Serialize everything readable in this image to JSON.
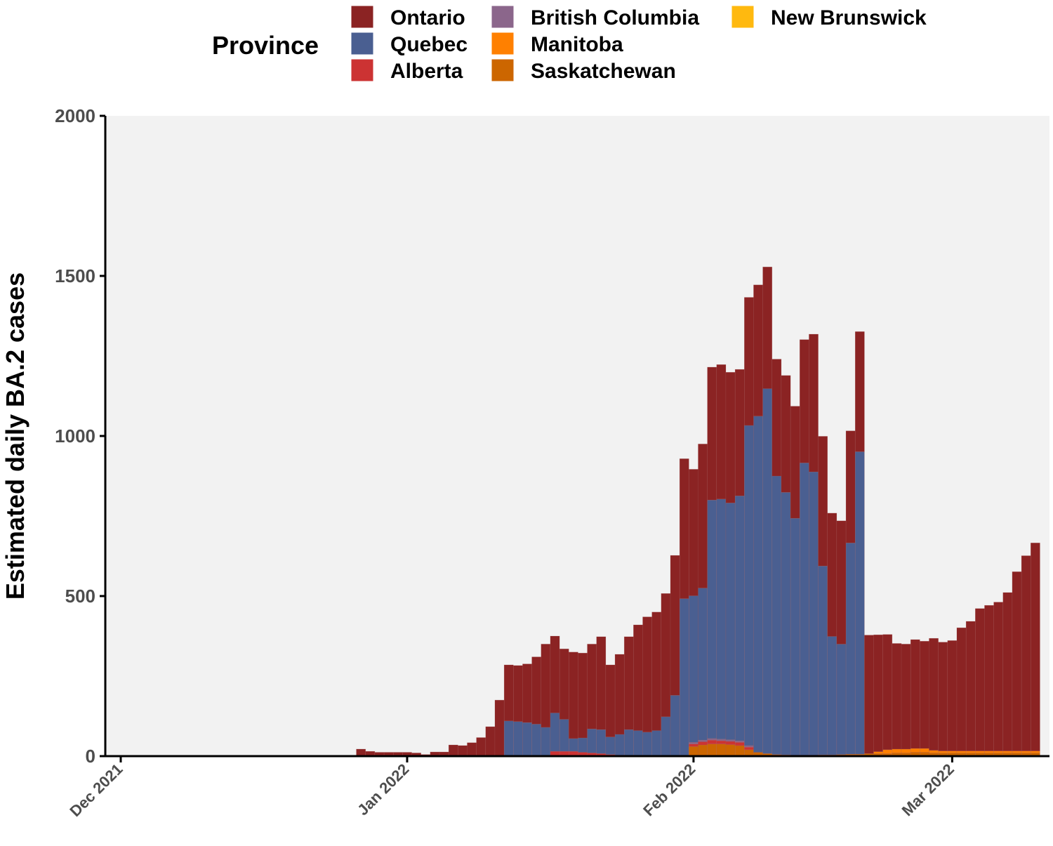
{
  "chart_data": {
    "type": "bar",
    "stacked": true,
    "ylabel": "Estimated daily BA.2 cases",
    "xlabel": "",
    "ylim": [
      0,
      2000
    ],
    "yticks": [
      0,
      500,
      1000,
      1500,
      2000
    ],
    "x_start": "2021-12-01",
    "x_end": "2022-03-11",
    "xticks": [
      {
        "date": "2021-12-01",
        "label": "Dec 2021"
      },
      {
        "date": "2022-01-01",
        "label": "Jan 2022"
      },
      {
        "date": "2022-02-01",
        "label": "Feb 2022"
      },
      {
        "date": "2022-03-01",
        "label": "Mar 2022"
      }
    ],
    "grid": false,
    "legend": {
      "title": "Province",
      "position": "top",
      "entries": [
        "Ontario",
        "Quebec",
        "Alberta",
        "British Columbia",
        "Manitoba",
        "Saskatchewan",
        "New Brunswick"
      ]
    },
    "x": [
      "2021-12-27",
      "2021-12-28",
      "2021-12-29",
      "2021-12-30",
      "2021-12-31",
      "2022-01-01",
      "2022-01-02",
      "2022-01-03",
      "2022-01-04",
      "2022-01-05",
      "2022-01-06",
      "2022-01-07",
      "2022-01-08",
      "2022-01-09",
      "2022-01-10",
      "2022-01-11",
      "2022-01-12",
      "2022-01-13",
      "2022-01-14",
      "2022-01-15",
      "2022-01-16",
      "2022-01-17",
      "2022-01-18",
      "2022-01-19",
      "2022-01-20",
      "2022-01-21",
      "2022-01-22",
      "2022-01-23",
      "2022-01-24",
      "2022-01-25",
      "2022-01-26",
      "2022-01-27",
      "2022-01-28",
      "2022-01-29",
      "2022-01-30",
      "2022-01-31",
      "2022-02-01",
      "2022-02-02",
      "2022-02-03",
      "2022-02-04",
      "2022-02-05",
      "2022-02-06",
      "2022-02-07",
      "2022-02-08",
      "2022-02-09",
      "2022-02-10",
      "2022-02-11",
      "2022-02-12",
      "2022-02-13",
      "2022-02-14",
      "2022-02-15",
      "2022-02-16",
      "2022-02-17",
      "2022-02-18",
      "2022-02-19",
      "2022-02-20",
      "2022-02-21",
      "2022-02-22",
      "2022-02-23",
      "2022-02-24",
      "2022-02-25",
      "2022-02-26",
      "2022-02-27",
      "2022-02-28",
      "2022-03-01",
      "2022-03-02",
      "2022-03-03",
      "2022-03-04",
      "2022-03-05",
      "2022-03-06",
      "2022-03-07",
      "2022-03-08",
      "2022-03-09",
      "2022-03-10"
    ],
    "series": [
      {
        "name": "Saskatchewan",
        "color": "#CC6600",
        "values": [
          0,
          0,
          0,
          0,
          0,
          0,
          0,
          0,
          0,
          0,
          0,
          0,
          0,
          0,
          0,
          0,
          0,
          0,
          0,
          0,
          0,
          0,
          0,
          0,
          0,
          0,
          0,
          0,
          0,
          0,
          0,
          0,
          0,
          0,
          0,
          0,
          30,
          35,
          38,
          38,
          36,
          33,
          20,
          12,
          8,
          5,
          4,
          3,
          3,
          3,
          4,
          4,
          5,
          6,
          6,
          8,
          8,
          8,
          10,
          10,
          12,
          12,
          10,
          10,
          10,
          10,
          10,
          10,
          10,
          10,
          10,
          10,
          10,
          10
        ]
      },
      {
        "name": "Manitoba",
        "color": "#FF8000",
        "values": [
          0,
          0,
          0,
          0,
          0,
          0,
          0,
          0,
          0,
          0,
          0,
          0,
          0,
          0,
          0,
          0,
          0,
          0,
          0,
          0,
          0,
          0,
          0,
          0,
          0,
          0,
          0,
          0,
          0,
          0,
          0,
          0,
          0,
          0,
          0,
          0,
          0,
          0,
          0,
          0,
          0,
          0,
          0,
          0,
          0,
          0,
          0,
          0,
          0,
          0,
          0,
          0,
          0,
          0,
          0,
          0,
          6,
          12,
          12,
          12,
          12,
          12,
          8,
          6,
          6,
          6,
          6,
          6,
          6,
          6,
          6,
          6,
          6,
          6
        ]
      },
      {
        "name": "Alberta",
        "color": "#CC3333",
        "values": [
          0,
          0,
          0,
          0,
          0,
          0,
          0,
          0,
          0,
          0,
          0,
          0,
          0,
          0,
          0,
          0,
          0,
          0,
          0,
          0,
          0,
          15,
          15,
          15,
          12,
          10,
          8,
          5,
          3,
          0,
          0,
          0,
          0,
          0,
          0,
          0,
          8,
          10,
          12,
          10,
          10,
          10,
          8,
          0,
          0,
          0,
          0,
          0,
          0,
          0,
          0,
          0,
          0,
          0,
          0,
          0,
          0,
          0,
          0,
          0,
          0,
          0,
          0,
          0,
          0,
          0,
          0,
          0,
          0,
          0,
          0,
          0,
          0,
          0
        ]
      },
      {
        "name": "British Columbia",
        "color": "#8B668B",
        "values": [
          0,
          0,
          0,
          0,
          0,
          0,
          0,
          0,
          0,
          0,
          0,
          0,
          0,
          0,
          0,
          0,
          0,
          0,
          0,
          0,
          0,
          0,
          0,
          0,
          0,
          0,
          0,
          0,
          0,
          0,
          0,
          0,
          0,
          0,
          0,
          0,
          5,
          5,
          5,
          5,
          5,
          5,
          5,
          0,
          0,
          0,
          0,
          0,
          0,
          0,
          0,
          0,
          0,
          0,
          0,
          0,
          0,
          0,
          0,
          0,
          0,
          0,
          0,
          0,
          0,
          0,
          0,
          0,
          0,
          0,
          0,
          0,
          0,
          0
        ]
      },
      {
        "name": "New Brunswick",
        "color": "#FFB90F",
        "values": [
          0,
          0,
          0,
          0,
          0,
          0,
          0,
          0,
          0,
          0,
          0,
          0,
          0,
          0,
          0,
          0,
          0,
          0,
          0,
          0,
          0,
          0,
          0,
          0,
          0,
          0,
          0,
          0,
          0,
          0,
          0,
          0,
          0,
          0,
          0,
          0,
          0,
          0,
          0,
          0,
          0,
          0,
          0,
          0,
          0,
          0,
          0,
          0,
          0,
          0,
          0,
          0,
          0,
          0,
          0,
          0,
          0,
          0,
          0,
          0,
          0,
          0,
          0,
          0,
          0,
          0,
          0,
          0,
          0,
          0,
          0,
          0,
          0,
          0
        ]
      },
      {
        "name": "Quebec",
        "color": "#4A5F91",
        "values": [
          0,
          0,
          0,
          0,
          0,
          0,
          0,
          0,
          0,
          0,
          0,
          0,
          0,
          0,
          0,
          0,
          110,
          108,
          105,
          100,
          90,
          120,
          100,
          40,
          45,
          75,
          75,
          55,
          65,
          83,
          80,
          75,
          80,
          123,
          190,
          492,
          458,
          475,
          745,
          750,
          740,
          765,
          1000,
          1050,
          1140,
          870,
          820,
          740,
          913,
          885,
          590,
          370,
          345,
          660,
          945,
          0,
          0,
          0,
          0,
          0,
          0,
          0,
          0,
          0,
          0,
          0,
          0,
          0,
          0,
          0,
          0,
          0,
          0,
          0
        ]
      },
      {
        "name": "Ontario",
        "color": "#8B2323",
        "values": [
          22,
          15,
          12,
          12,
          12,
          12,
          10,
          5,
          13,
          13,
          35,
          33,
          42,
          58,
          92,
          175,
          175,
          175,
          183,
          210,
          260,
          240,
          220,
          270,
          265,
          265,
          290,
          225,
          250,
          290,
          330,
          360,
          370,
          385,
          437,
          437,
          395,
          450,
          415,
          420,
          408,
          395,
          400,
          410,
          380,
          365,
          365,
          350,
          385,
          430,
          405,
          385,
          385,
          350,
          375,
          370,
          365,
          360,
          330,
          328,
          340,
          335,
          350,
          340,
          345,
          385,
          405,
          445,
          455,
          465,
          495,
          560,
          610,
          650
        ]
      }
    ]
  }
}
